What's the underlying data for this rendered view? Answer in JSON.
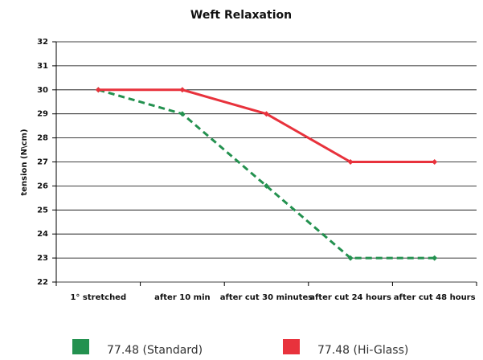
{
  "chart_data": {
    "type": "line",
    "title": "Weft Relaxation",
    "y_label": "tension (N\\cm)",
    "categories": [
      "1° stretched",
      "after 10 min",
      "after cut 30 minutes",
      "after cut 24 hours",
      "after cut 48 hours"
    ],
    "series": [
      {
        "name": "77.48 (Standard)",
        "color": "#23914f",
        "dash": true,
        "values": [
          30,
          29,
          26,
          23,
          23
        ]
      },
      {
        "name": "77.48 (Hi-Glass)",
        "color": "#e8323c",
        "dash": false,
        "values": [
          30,
          30,
          29,
          27,
          27
        ]
      }
    ],
    "ylim": [
      22,
      32
    ],
    "yticks": [
      22,
      23,
      24,
      25,
      26,
      27,
      28,
      29,
      30,
      31,
      32
    ],
    "grid": true,
    "legend": "bottom"
  }
}
